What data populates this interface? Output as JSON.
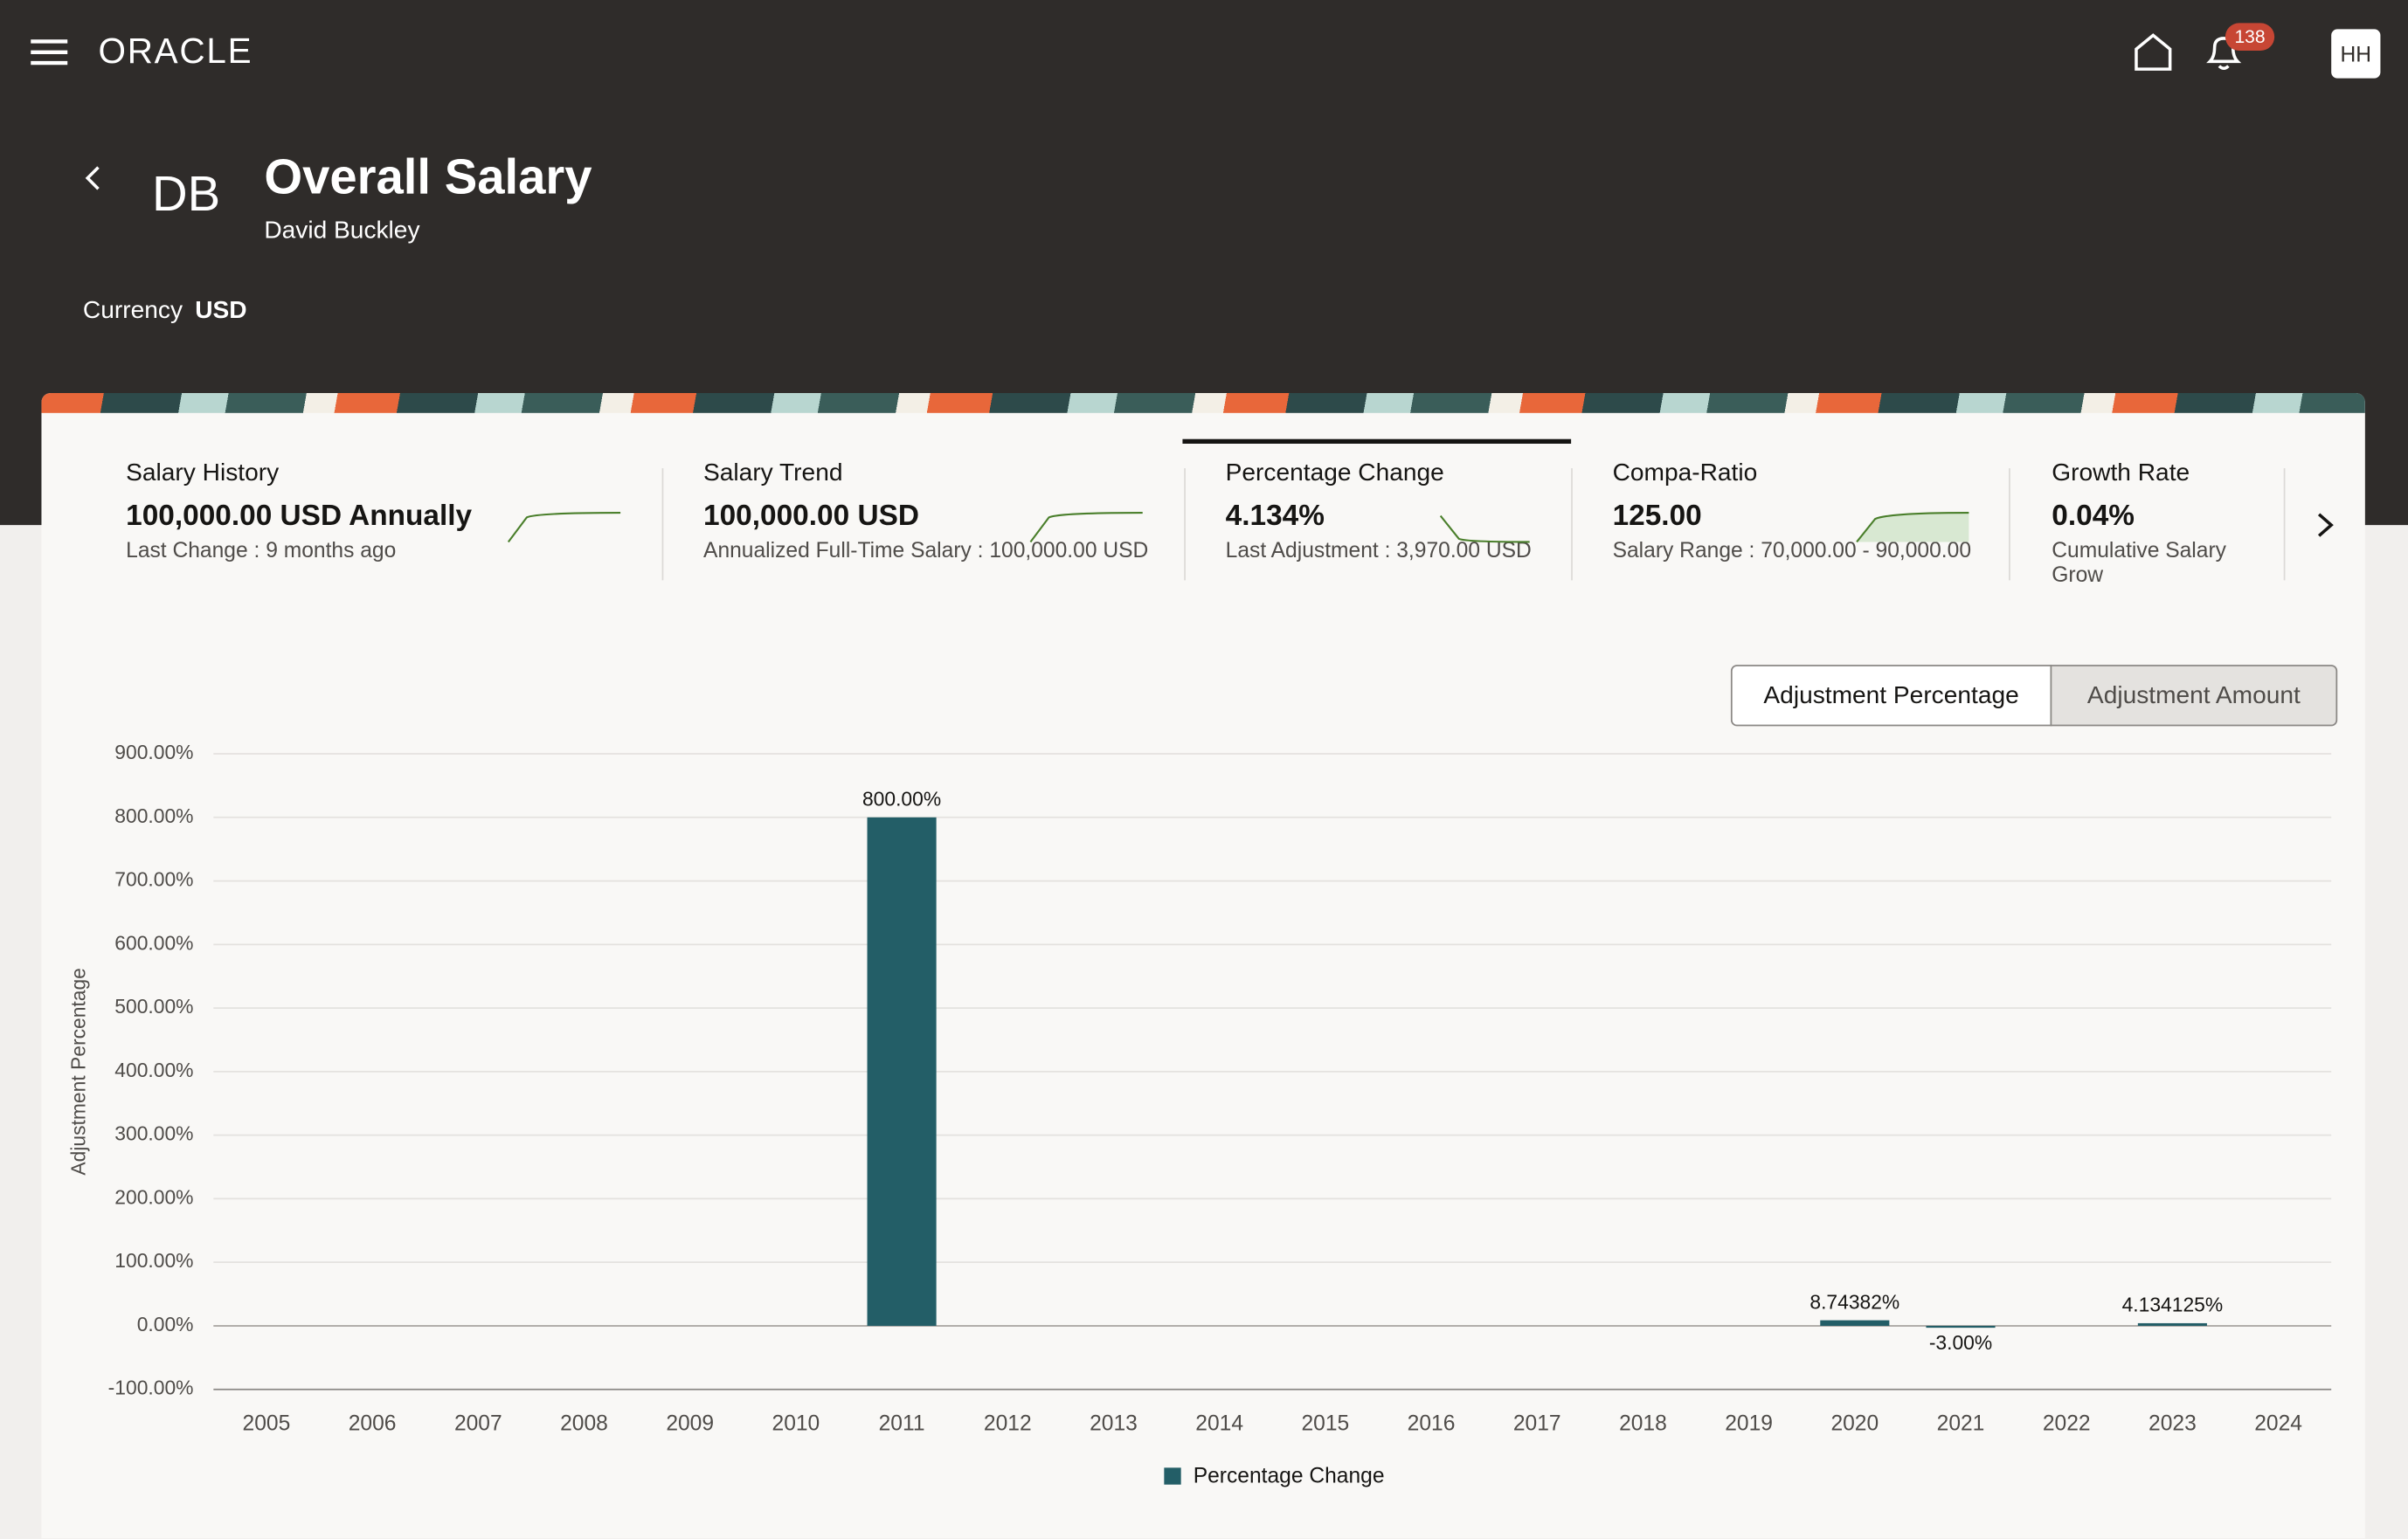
{
  "header": {
    "logo": "ORACLE",
    "notification_count": "138",
    "avatar": "HH"
  },
  "profile": {
    "initials": "DB",
    "title": "Overall Salary",
    "name": "David Buckley",
    "currency_label": "Currency",
    "currency": "USD"
  },
  "tabs": [
    {
      "title": "Salary History",
      "value": "100,000.00 USD Annually",
      "subtitle": "Last Change : 9 months ago"
    },
    {
      "title": "Salary Trend",
      "value": "100,000.00 USD",
      "subtitle": "Annualized Full-Time Salary : 100,000.00 USD"
    },
    {
      "title": "Percentage Change",
      "value": "4.134%",
      "subtitle": "Last Adjustment : 3,970.00 USD"
    },
    {
      "title": "Compa-Ratio",
      "value": "125.00",
      "subtitle": "Salary Range : 70,000.00 - 90,000.00"
    },
    {
      "title": "Growth Rate",
      "value": "0.04%",
      "subtitle": "Cumulative Salary Grow"
    }
  ],
  "buttons": [
    "Adjustment Percentage",
    "Adjustment Amount"
  ],
  "chart_data": {
    "type": "bar",
    "y_label": "Adjustment Percentage",
    "categories": [
      "2005",
      "2006",
      "2007",
      "2008",
      "2009",
      "2010",
      "2011",
      "2012",
      "2013",
      "2014",
      "2015",
      "2016",
      "2017",
      "2018",
      "2019",
      "2020",
      "2021",
      "2022",
      "2023",
      "2024"
    ],
    "series": [
      {
        "name": "Percentage Change",
        "color": "#235e67",
        "values": [
          null,
          null,
          null,
          null,
          null,
          null,
          800,
          null,
          null,
          null,
          null,
          null,
          null,
          null,
          null,
          8.74382,
          -3,
          null,
          4.134125,
          null
        ],
        "value_labels": [
          null,
          null,
          null,
          null,
          null,
          null,
          "800.00%",
          null,
          null,
          null,
          null,
          null,
          null,
          null,
          null,
          "8.74382%",
          "-3.00%",
          null,
          "4.134125%",
          null
        ]
      }
    ],
    "ylim": [
      -100,
      900
    ],
    "yticks": [
      {
        "value": -100,
        "label": "-100.00%"
      },
      {
        "value": 0,
        "label": "0.00%"
      },
      {
        "value": 100,
        "label": "100.00%"
      },
      {
        "value": 200,
        "label": "200.00%"
      },
      {
        "value": 300,
        "label": "300.00%"
      },
      {
        "value": 400,
        "label": "400.00%"
      },
      {
        "value": 500,
        "label": "500.00%"
      },
      {
        "value": 600,
        "label": "600.00%"
      },
      {
        "value": 700,
        "label": "700.00%"
      },
      {
        "value": 800,
        "label": "800.00%"
      },
      {
        "value": 900,
        "label": "900.00%"
      }
    ],
    "grid": true,
    "legend": "bottom"
  }
}
